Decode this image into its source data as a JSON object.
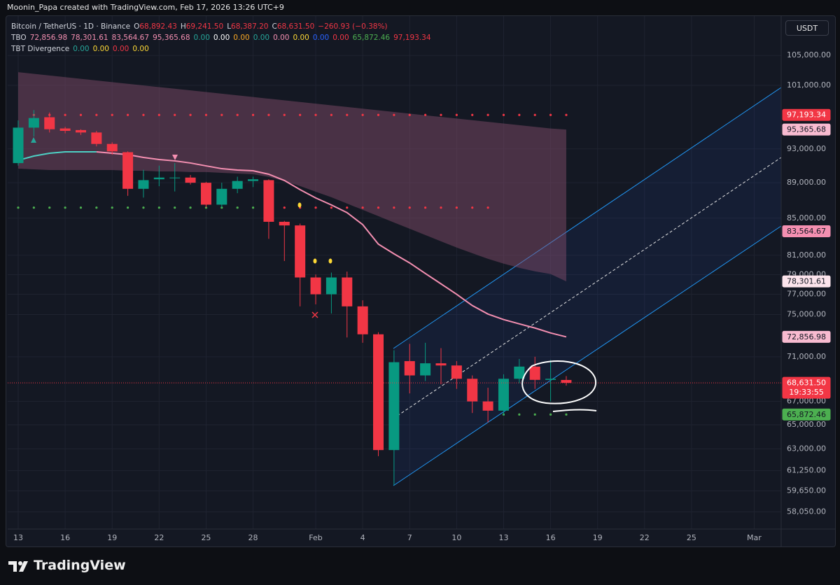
{
  "header": {
    "attribution": "Moonin_Papa created with TradingView.com, Feb 17, 2026 13:26 UTC+9"
  },
  "branding": "TradingView",
  "currency_button": "USDT",
  "chart_data": {
    "type": "candlestick",
    "log_scale": true,
    "grid": true,
    "up_color": "#089981",
    "down_color": "#f23645",
    "legend": {
      "symbol": "Bitcoin / TetherUS · 1D · Binance",
      "ohlc": [
        {
          "label": "O",
          "value": "68,892.43"
        },
        {
          "label": "H",
          "value": "69,241.50"
        },
        {
          "label": "L",
          "value": "68,387.20"
        },
        {
          "label": "C",
          "value": "68,631.50"
        }
      ],
      "change": "−260.93 (−0.38%)",
      "ohlc_color": "#f23645",
      "rows": [
        {
          "name": "TBO",
          "items": [
            {
              "text": "72,856.98",
              "color": "#f48fb1"
            },
            {
              "text": "78,301.61",
              "color": "#f48fb1"
            },
            {
              "text": "83,564.67",
              "color": "#f48fb1"
            },
            {
              "text": "95,365.68",
              "color": "#f48fb1"
            },
            {
              "text": "0.00",
              "color": "#26a69a"
            },
            {
              "text": "0.00",
              "color": "#ffffff"
            },
            {
              "text": "0.00",
              "color": "#f9a825"
            },
            {
              "text": "0.00",
              "color": "#26a69a"
            },
            {
              "text": "0.00",
              "color": "#f48fb1"
            },
            {
              "text": "0.00",
              "color": "#fdd835"
            },
            {
              "text": "0.00",
              "color": "#2962ff"
            },
            {
              "text": "0.00",
              "color": "#f23645"
            },
            {
              "text": "65,872.46",
              "color": "#4caf50"
            },
            {
              "text": "97,193.34",
              "color": "#f23645"
            }
          ]
        },
        {
          "name": "TBT Divergence",
          "items": [
            {
              "text": "0.00",
              "color": "#26a69a"
            },
            {
              "text": "0.00",
              "color": "#fdd835"
            },
            {
              "text": "0.00",
              "color": "#f23645"
            },
            {
              "text": "0.00",
              "color": "#fdd835"
            }
          ]
        }
      ]
    },
    "categories": [
      "13",
      null,
      null,
      "16",
      null,
      null,
      "19",
      null,
      null,
      "22",
      null,
      null,
      "25",
      null,
      null,
      "28",
      null,
      null,
      null,
      "Feb",
      null,
      null,
      "4",
      null,
      null,
      "7",
      null,
      null,
      "10",
      null,
      null,
      "13",
      null,
      null,
      "16",
      null,
      null,
      "19",
      null,
      null,
      "22",
      null,
      null,
      "25",
      null,
      null,
      null,
      "Mar",
      null
    ],
    "candles": {
      "open": [
        91300,
        95600,
        96900,
        95500,
        95300,
        95000,
        93600,
        92600,
        88300,
        89400,
        89550,
        89600,
        89000,
        86500,
        88300,
        89200,
        89300,
        84600,
        84200,
        78700,
        77000,
        78700,
        75800,
        73100,
        62900,
        70600,
        69300,
        70400,
        70200,
        69000,
        67000,
        66200,
        69000,
        70100,
        68900,
        68892.43,
        null,
        null,
        null,
        null,
        null,
        null,
        null,
        null,
        null,
        null,
        null,
        null,
        null
      ],
      "high": [
        96500,
        97800,
        97500,
        95700,
        95400,
        95200,
        93800,
        92700,
        90500,
        91000,
        91300,
        89900,
        89100,
        89000,
        89700,
        89700,
        89400,
        84700,
        84400,
        79000,
        79200,
        79300,
        76400,
        73300,
        71600,
        72200,
        72300,
        71800,
        70600,
        69300,
        68200,
        69400,
        70800,
        71000,
        70700,
        69241.5,
        null,
        null,
        null,
        null,
        null,
        null,
        null,
        null,
        null,
        null,
        null,
        null,
        null
      ],
      "low": [
        91000,
        94500,
        95000,
        94900,
        94700,
        93300,
        92300,
        87500,
        87300,
        88600,
        88000,
        88800,
        86200,
        86200,
        87800,
        88500,
        82750,
        80400,
        75800,
        76000,
        75100,
        72800,
        72300,
        62400,
        60100,
        67700,
        68800,
        68500,
        68100,
        66000,
        65200,
        65800,
        68600,
        68100,
        67000,
        68387.2,
        null,
        null,
        null,
        null,
        null,
        null,
        null,
        null,
        null,
        null,
        null,
        null,
        null
      ],
      "close": [
        95600,
        96800,
        95400,
        95200,
        95000,
        93600,
        92700,
        88300,
        89300,
        89600,
        89600,
        89000,
        86500,
        88300,
        89200,
        89400,
        84600,
        84200,
        78700,
        77000,
        78700,
        75800,
        73100,
        62900,
        70500,
        69300,
        70400,
        70200,
        69000,
        67000,
        66200,
        69000,
        70100,
        68900,
        69000,
        68631.5,
        null,
        null,
        null,
        null,
        null,
        null,
        null,
        null,
        null,
        null,
        null,
        null,
        null
      ]
    },
    "lines": [
      {
        "color": "#4dd0c4",
        "values": [
          91630,
          92140,
          92470,
          92640,
          92640,
          92640,
          null,
          null,
          null,
          null,
          null,
          null,
          null,
          null,
          null,
          null,
          null,
          null,
          null,
          null,
          null,
          null,
          null,
          null,
          null,
          null,
          null,
          null,
          null,
          null,
          null,
          null,
          null,
          null,
          null,
          null,
          null,
          null,
          null,
          null,
          null,
          null,
          null,
          null,
          null,
          null,
          null,
          null,
          null
        ]
      },
      {
        "color": "#f48fb1",
        "values": [
          null,
          null,
          null,
          null,
          null,
          92640,
          92470,
          92310,
          91970,
          91720,
          91560,
          91310,
          90970,
          90640,
          90480,
          90400,
          89990,
          89260,
          88210,
          87260,
          86470,
          85610,
          84290,
          82180,
          81150,
          80200,
          79110,
          78050,
          77000,
          75880,
          75050,
          74510,
          74100,
          73700,
          73230,
          72856.98,
          null,
          null,
          null,
          null,
          null,
          null,
          null,
          null,
          null,
          null,
          null,
          null,
          null
        ]
      }
    ],
    "cloud": {
      "color": "#8a4f6e",
      "top": [
        102740,
        102519,
        102299,
        102079,
        101860,
        101641,
        101423,
        101205,
        100987,
        100770,
        100554,
        100338,
        100122,
        99907,
        99692,
        99478,
        99264,
        99051,
        98838,
        98625,
        98413,
        98202,
        97991,
        97780,
        97570,
        97360,
        97151,
        96942,
        96734,
        96526,
        96318,
        96111,
        95905,
        95699,
        95493,
        95365.68,
        null,
        null,
        null,
        null,
        null,
        null,
        null,
        null,
        null,
        null,
        null,
        null,
        null
      ],
      "bottom": [
        90640,
        90560,
        90480,
        90480,
        90480,
        90480,
        90480,
        90400,
        90400,
        90320,
        90320,
        90240,
        90240,
        90150,
        90070,
        89990,
        89670,
        89180,
        88620,
        87970,
        87340,
        86630,
        85920,
        85220,
        84520,
        83840,
        83160,
        82480,
        81820,
        81220,
        80630,
        80130,
        79690,
        79330,
        79050,
        78301.61,
        null,
        null,
        null,
        null,
        null,
        null,
        null,
        null,
        null,
        null,
        null,
        null,
        null
      ]
    },
    "dots": [
      {
        "color": "#f23645",
        "values": [
          null,
          97193.34,
          97193.34,
          97193.34,
          97193.34,
          97193.34,
          97193.34,
          97193.34,
          97193.34,
          97193.34,
          97193.34,
          97193.34,
          97193.34,
          97193.34,
          97193.34,
          97193.34,
          97193.34,
          97193.34,
          97193.34,
          97193.34,
          97193.34,
          97193.34,
          97193.34,
          97193.34,
          97193.34,
          97193.34,
          97193.34,
          97193.34,
          97193.34,
          97193.34,
          97193.34,
          97193.34,
          97193.34,
          97193.34,
          97193.34,
          97193.34,
          null,
          null,
          null,
          null,
          null,
          null,
          null,
          null,
          null,
          null,
          null,
          null,
          null
        ]
      },
      {
        "color": "#4caf50",
        "values": [
          86170,
          86170,
          86170,
          86170,
          86170,
          86170,
          86170,
          86170,
          86170,
          86170,
          86170,
          86170,
          86170,
          86170,
          86170,
          86170,
          null,
          null,
          null,
          null,
          null,
          null,
          null,
          null,
          null,
          null,
          null,
          null,
          null,
          null,
          null,
          65872.46,
          65872.46,
          65872.46,
          65872.46,
          65872.46,
          null,
          null,
          null,
          null,
          null,
          null,
          null,
          null,
          null,
          null,
          null,
          null,
          null
        ]
      },
      {
        "color": "#f23645",
        "values": [
          null,
          null,
          null,
          null,
          null,
          null,
          null,
          null,
          null,
          null,
          null,
          null,
          null,
          null,
          null,
          null,
          null,
          86170,
          86170,
          86170,
          86170,
          86170,
          86170,
          86170,
          86170,
          86170,
          86170,
          86170,
          86170,
          86170,
          86170,
          null,
          null,
          null,
          null,
          null,
          null,
          null,
          null,
          null,
          null,
          null,
          null,
          null,
          null,
          null,
          null,
          null,
          null
        ]
      }
    ],
    "ylim": [
      56770,
      110500
    ],
    "yticks": [
      {
        "value": 105000,
        "label": "105,000.00"
      },
      {
        "value": 101000,
        "label": "101,000.00"
      },
      {
        "value": 93000,
        "label": "93,000.00"
      },
      {
        "value": 89000,
        "label": "89,000.00"
      },
      {
        "value": 85000,
        "label": "85,000.00"
      },
      {
        "value": 81000,
        "label": "81,000.00"
      },
      {
        "value": 79000,
        "label": "79,000.00"
      },
      {
        "value": 77000,
        "label": "77,000.00"
      },
      {
        "value": 75000,
        "label": "75,000.00"
      },
      {
        "value": 71000,
        "label": "71,000.00"
      },
      {
        "value": 67000,
        "label": "67,000.00"
      },
      {
        "value": 65000,
        "label": "65,000.00"
      },
      {
        "value": 63000,
        "label": "63,000.00"
      },
      {
        "value": 61250,
        "label": "61,250.00"
      },
      {
        "value": 59650,
        "label": "59,650.00"
      },
      {
        "value": 58050,
        "label": "58,050.00"
      }
    ],
    "price_tags": [
      {
        "value": 97193.34,
        "label": "97,193.34",
        "color": "#f23645",
        "text_color": "#ffffff"
      },
      {
        "value": 95365.68,
        "label": "95,365.68",
        "color": "#f8bbd0",
        "text_color": "#131722"
      },
      {
        "value": 83564.67,
        "label": "83,564.67",
        "color": "#f48fb1",
        "text_color": "#131722"
      },
      {
        "value": 78301.61,
        "label": "78,301.61",
        "color": "#fce4ec",
        "text_color": "#131722"
      },
      {
        "value": 72856.98,
        "label": "72,856.98",
        "color": "#f8bbd0",
        "text_color": "#131722"
      },
      {
        "value": 68631.5,
        "label": "68,631.50",
        "color": "#f23645",
        "text_color": "#ffffff",
        "countdown": "19:33:55",
        "dotted_line": true
      },
      {
        "value": 65872.46,
        "label": "65,872.46",
        "color": "#4caf50",
        "text_color": "#131722"
      }
    ]
  }
}
